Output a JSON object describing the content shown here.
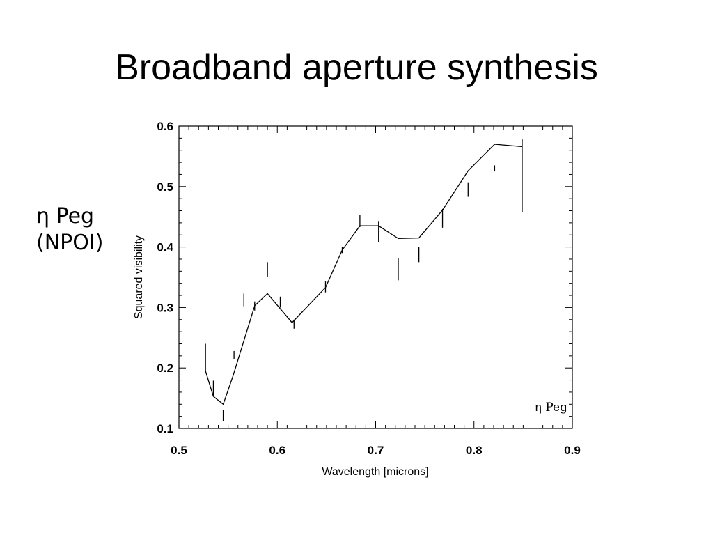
{
  "slide": {
    "title": "Broadband aperture synthesis",
    "side_label_line1": "η Peg",
    "side_label_line2": "(NPOI)"
  },
  "chart_data": {
    "type": "line",
    "title": "",
    "xlabel": "Wavelength [microns]",
    "ylabel": "Squared visibility",
    "xlim": [
      0.5,
      0.9
    ],
    "ylim": [
      0.1,
      0.6
    ],
    "x_ticks": [
      "0.5",
      "0.6",
      "0.7",
      "0.8",
      "0.9"
    ],
    "y_ticks": [
      "0.1",
      "0.2",
      "0.3",
      "0.4",
      "0.5",
      "0.6"
    ],
    "legend": {
      "text": "η Peg",
      "position": "bottom-right"
    },
    "model_line": {
      "x": [
        0.527,
        0.535,
        0.545,
        0.555,
        0.577,
        0.59,
        0.615,
        0.649,
        0.666,
        0.684,
        0.703,
        0.723,
        0.744,
        0.768,
        0.794,
        0.821,
        0.849
      ],
      "y": [
        0.195,
        0.153,
        0.14,
        0.187,
        0.303,
        0.323,
        0.275,
        0.333,
        0.395,
        0.435,
        0.435,
        0.414,
        0.415,
        0.461,
        0.526,
        0.57,
        0.566
      ]
    },
    "error_bars": {
      "x": [
        0.527,
        0.535,
        0.545,
        0.556,
        0.566,
        0.577,
        0.59,
        0.603,
        0.617,
        0.649,
        0.666,
        0.684,
        0.703,
        0.723,
        0.744,
        0.768,
        0.794,
        0.821,
        0.849
      ],
      "y_low": [
        0.194,
        0.153,
        0.112,
        0.215,
        0.302,
        0.295,
        0.35,
        0.3,
        0.265,
        0.325,
        0.39,
        0.433,
        0.408,
        0.345,
        0.375,
        0.432,
        0.483,
        0.525,
        0.458
      ],
      "y_high": [
        0.24,
        0.179,
        0.13,
        0.228,
        0.323,
        0.31,
        0.375,
        0.318,
        0.28,
        0.343,
        0.4,
        0.453,
        0.443,
        0.382,
        0.4,
        0.463,
        0.507,
        0.535,
        0.578
      ]
    }
  }
}
